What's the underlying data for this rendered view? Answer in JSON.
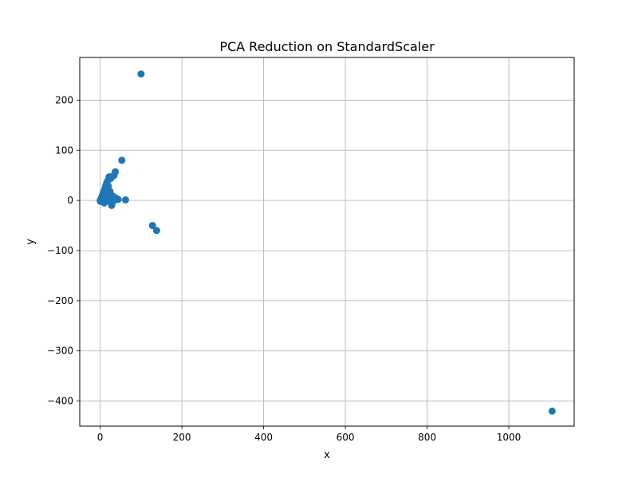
{
  "chart_data": {
    "type": "scatter",
    "title": "PCA Reduction on StandardScaler",
    "xlabel": "x",
    "ylabel": "y",
    "xlim": [
      -50,
      1160
    ],
    "ylim": [
      -450,
      285
    ],
    "xticks": [
      {
        "value": 0,
        "label": "0"
      },
      {
        "value": 200,
        "label": "200"
      },
      {
        "value": 400,
        "label": "400"
      },
      {
        "value": 600,
        "label": "600"
      },
      {
        "value": 800,
        "label": "800"
      },
      {
        "value": 1000,
        "label": "1000"
      }
    ],
    "yticks": [
      {
        "value": -400,
        "label": "−400"
      },
      {
        "value": -300,
        "label": "−300"
      },
      {
        "value": -200,
        "label": "−200"
      },
      {
        "value": -100,
        "label": "−100"
      },
      {
        "value": 0,
        "label": "0"
      },
      {
        "value": 100,
        "label": "100"
      },
      {
        "value": 200,
        "label": "200"
      }
    ],
    "grid": true,
    "marker_color": "#1f77b4",
    "points": [
      {
        "x": 100,
        "y": 252
      },
      {
        "x": 53,
        "y": 80
      },
      {
        "x": 37,
        "y": 57
      },
      {
        "x": 34,
        "y": 50
      },
      {
        "x": 30,
        "y": 48
      },
      {
        "x": 22,
        "y": 47
      },
      {
        "x": 26,
        "y": 44
      },
      {
        "x": 19,
        "y": 40
      },
      {
        "x": 16,
        "y": 35
      },
      {
        "x": 14,
        "y": 30
      },
      {
        "x": 20,
        "y": 28
      },
      {
        "x": 12,
        "y": 25
      },
      {
        "x": 17,
        "y": 22
      },
      {
        "x": 10,
        "y": 20
      },
      {
        "x": 24,
        "y": 18
      },
      {
        "x": 8,
        "y": 15
      },
      {
        "x": 15,
        "y": 14
      },
      {
        "x": 6,
        "y": 11
      },
      {
        "x": 20,
        "y": 10
      },
      {
        "x": 30,
        "y": 9
      },
      {
        "x": 4,
        "y": 7
      },
      {
        "x": 12,
        "y": 6
      },
      {
        "x": 38,
        "y": 5
      },
      {
        "x": 25,
        "y": 4
      },
      {
        "x": 2,
        "y": 3
      },
      {
        "x": 8,
        "y": 2
      },
      {
        "x": 44,
        "y": 2
      },
      {
        "x": 18,
        "y": 1
      },
      {
        "x": 62,
        "y": 1
      },
      {
        "x": 0,
        "y": 0
      },
      {
        "x": 5,
        "y": -1
      },
      {
        "x": 33,
        "y": -1
      },
      {
        "x": 1,
        "y": -2
      },
      {
        "x": 14,
        "y": -2
      },
      {
        "x": 10,
        "y": -5
      },
      {
        "x": 28,
        "y": -10
      },
      {
        "x": 128,
        "y": -50
      },
      {
        "x": 138,
        "y": -60
      },
      {
        "x": 1106,
        "y": -420
      }
    ]
  }
}
